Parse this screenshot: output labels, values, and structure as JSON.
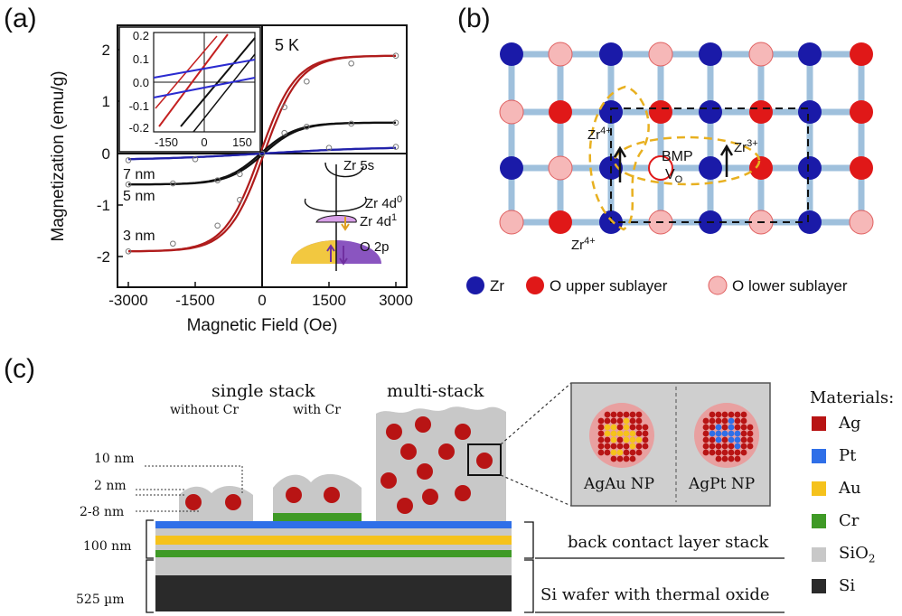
{
  "panel_a": {
    "label": "(a)",
    "temp": "5 K",
    "ylabel": "Magnetization (emu/g)",
    "xlabel": "Magnetic Field (Oe)",
    "x_ticks": [
      "-3000",
      "-1500",
      "0",
      "1500",
      "3000"
    ],
    "y_ticks": [
      "2",
      "1",
      "0",
      "-1",
      "-2"
    ],
    "inset_x_ticks": [
      "-150",
      "0",
      "150"
    ],
    "inset_y_ticks": [
      "0.2",
      "0.1",
      "0.0",
      "-0.1",
      "-0.2"
    ],
    "curve_labels": [
      "7 nm",
      "5 nm",
      "3 nm"
    ],
    "levels": {
      "zr5s": "Zr 5s",
      "zr4d0": "Zr 4d",
      "zr4d0_sup": "0",
      "zr4d1": "Zr 4d",
      "zr4d1_sup": "1",
      "o2p": "O 2p"
    },
    "colors": {
      "3nm": "#b01c1c",
      "5nm": "#111111",
      "7nm": "#2222aa"
    }
  },
  "chart_data": {
    "type": "line",
    "xlabel": "Magnetic Field (Oe)",
    "ylabel": "Magnetization (emu/g)",
    "xlim": [
      -3000,
      3000
    ],
    "ylim": [
      -2.4,
      2.4
    ],
    "annotation": "5 K",
    "series": [
      {
        "name": "3 nm",
        "x": [
          -3000,
          -2000,
          -1000,
          -500,
          0,
          500,
          1000,
          2000,
          3000
        ],
        "y": [
          -1.9,
          -1.75,
          -1.4,
          -0.9,
          0.0,
          0.9,
          1.4,
          1.75,
          1.9
        ]
      },
      {
        "name": "5 nm",
        "x": [
          -3000,
          -2000,
          -1000,
          -500,
          0,
          500,
          1000,
          2000,
          3000
        ],
        "y": [
          -0.6,
          -0.58,
          -0.52,
          -0.4,
          0.0,
          0.4,
          0.52,
          0.58,
          0.6
        ]
      },
      {
        "name": "7 nm",
        "x": [
          -3000,
          -1500,
          0,
          1500,
          3000
        ],
        "y": [
          -0.13,
          -0.11,
          0.0,
          0.11,
          0.13
        ]
      }
    ]
  },
  "panel_b": {
    "label": "(b)",
    "zr4_top": "Zr",
    "zr4_top_sup": "4+",
    "zr4_bot": "Zr",
    "zr4_bot_sup": "4+",
    "zr3": "Zr",
    "zr3_sup": "3+",
    "bmp": "BMP",
    "vo": "V",
    "vo_sub": "O",
    "legend": [
      "Zr",
      "O upper sublayer",
      "O lower sublayer"
    ],
    "colors": {
      "zr": "#1a1aa8",
      "o_upper": "#e01818",
      "o_lower": "#f6b8b8",
      "bond": "#9fc0dc",
      "bmp": "#e8b020"
    }
  },
  "panel_c": {
    "label": "(c)",
    "single_stack": "single stack",
    "without_cr": "without Cr",
    "with_cr": "with Cr",
    "multi_stack": "multi-stack",
    "dims": [
      "10 nm",
      "2 nm",
      "2-8 nm",
      "100 nm",
      "525 µm"
    ],
    "np_agau": "AgAu NP",
    "np_agpt": "AgPt NP",
    "back_contact": "back contact layer stack",
    "si_wafer": "Si wafer with thermal oxide",
    "materials_title": "Materials:",
    "materials": [
      {
        "name": "Ag",
        "color": "#b81414"
      },
      {
        "name": "Pt",
        "color": "#2f6fe8"
      },
      {
        "name": "Au",
        "color": "#f5c21c"
      },
      {
        "name": "Cr",
        "color": "#3f9a26"
      },
      {
        "name": "SiO",
        "sub": "2",
        "color": "#c8c8c8"
      },
      {
        "name": "Si",
        "color": "#2a2a2a"
      }
    ]
  }
}
